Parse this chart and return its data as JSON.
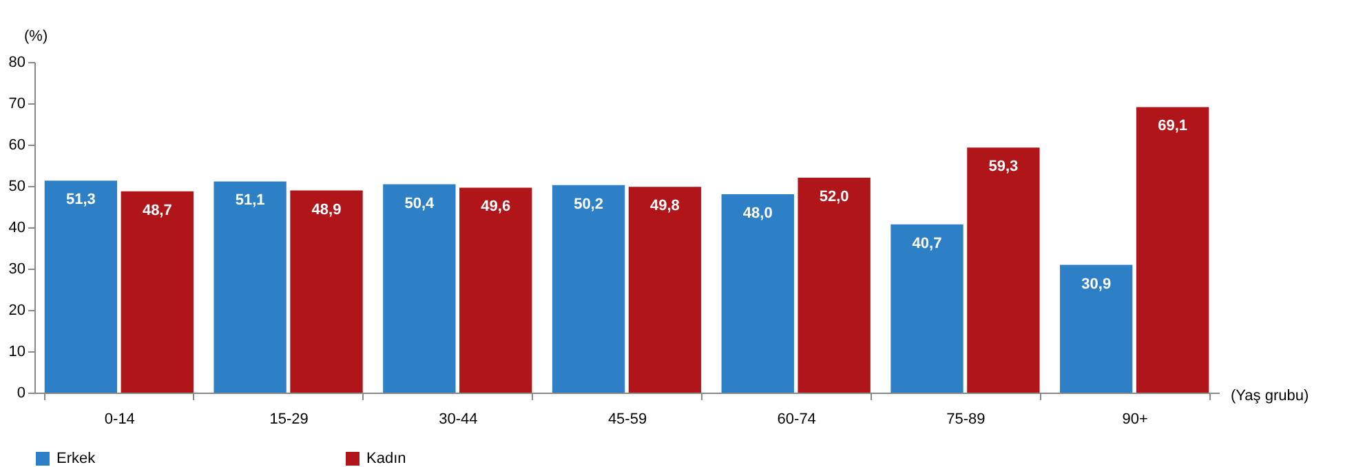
{
  "chart_data": {
    "type": "bar",
    "ylabel": "(%)",
    "xlabel": "(Yaş grubu)",
    "categories": [
      "0-14",
      "15-29",
      "30-44",
      "45-59",
      "60-74",
      "75-89",
      "90+"
    ],
    "series": [
      {
        "name": "Erkek",
        "color": "#2e80c6",
        "values": [
          51.3,
          51.1,
          50.4,
          50.2,
          48.0,
          40.7,
          30.9
        ],
        "value_labels": [
          "51,3",
          "51,1",
          "50,4",
          "50,2",
          "48,0",
          "40,7",
          "30,9"
        ]
      },
      {
        "name": "Kadın",
        "color": "#b01519",
        "values": [
          48.7,
          48.9,
          49.6,
          49.8,
          52.0,
          59.3,
          69.1
        ],
        "value_labels": [
          "48,7",
          "48,9",
          "49,6",
          "49,8",
          "52,0",
          "59,3",
          "69,1"
        ]
      }
    ],
    "ylim": [
      0,
      80
    ],
    "yticks": [
      0,
      10,
      20,
      30,
      40,
      50,
      60,
      70,
      80
    ],
    "grid": false,
    "legend": "bottom"
  }
}
